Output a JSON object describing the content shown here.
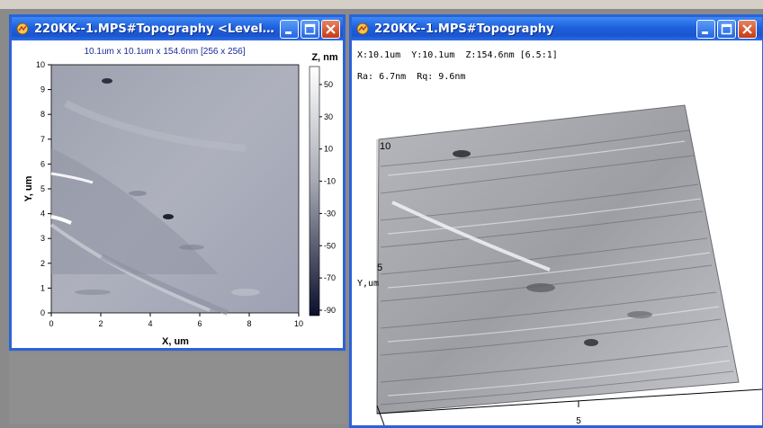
{
  "left_window": {
    "title": "220KK--1.MPS#Topography <Levelin...",
    "header": "10.1um x 10.1um x 154.6nm [256 x 256]",
    "colorbar_title": "Z, nm",
    "colorbar_ticks": [
      "50",
      "30",
      "10",
      "-10",
      "-30",
      "-50",
      "-70",
      "-90"
    ],
    "y_axis_label": "Y, um",
    "x_axis_label": "X, um",
    "y_ticks": [
      "10",
      "9",
      "8",
      "7",
      "6",
      "5",
      "4",
      "3",
      "2",
      "1",
      "0"
    ],
    "x_ticks": [
      "0",
      "2",
      "4",
      "6",
      "8",
      "10"
    ]
  },
  "right_window": {
    "title": "220KK--1.MPS#Topography",
    "info_line1": "X:10.1um  Y:10.1um  Z:154.6nm [6.5:1]",
    "info_line2": "Ra: 6.7nm  Rq: 9.6nm",
    "y_label": "Y,um",
    "tick_10": "10",
    "tick_5_y": "5",
    "tick_5_x": "5"
  },
  "icons": {
    "app": "app-icon",
    "minimize": "minimize-icon",
    "maximize": "maximize-icon",
    "close": "close-icon"
  },
  "colors": {
    "titlebar": "#1f5fdc",
    "close": "#c53a16",
    "surface": "#a8aab0"
  }
}
